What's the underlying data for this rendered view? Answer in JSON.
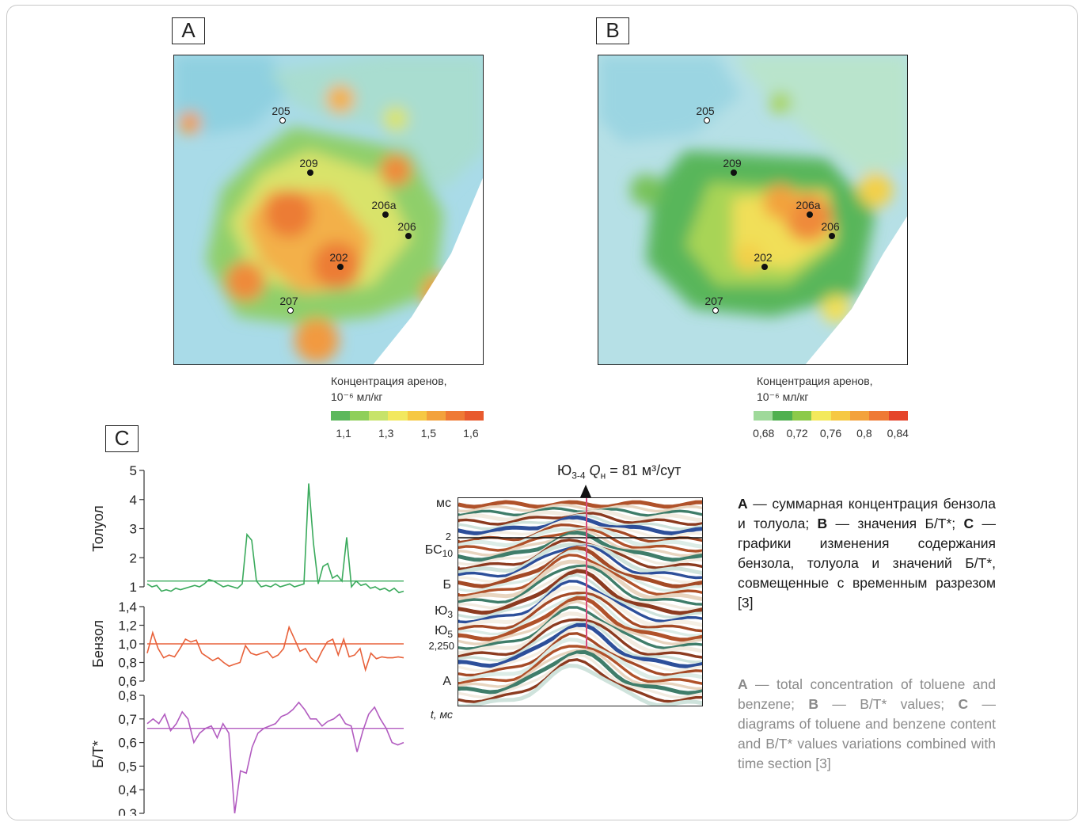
{
  "panels": {
    "a": {
      "tag": "A",
      "wells": [
        {
          "id": "205",
          "filled": false
        },
        {
          "id": "209",
          "filled": true
        },
        {
          "id": "206a",
          "filled": true
        },
        {
          "id": "206",
          "filled": true
        },
        {
          "id": "202",
          "filled": true
        },
        {
          "id": "207",
          "filled": false
        }
      ],
      "legend_title_line1": "Концентрация аренов,",
      "legend_title_line2": "10⁻⁶ мл/кг",
      "legend_ticks": [
        "1,1",
        "1,3",
        "1,5",
        "1,6"
      ],
      "legend_colors": [
        "#5cb85c",
        "#8fcf5a",
        "#c7e36a",
        "#f2e85e",
        "#f6c843",
        "#f3a23c",
        "#ef7a35",
        "#e85a2e"
      ]
    },
    "b": {
      "tag": "B",
      "wells": [
        {
          "id": "205",
          "filled": false
        },
        {
          "id": "209",
          "filled": true
        },
        {
          "id": "206a",
          "filled": true
        },
        {
          "id": "206",
          "filled": true
        },
        {
          "id": "202",
          "filled": true
        },
        {
          "id": "207",
          "filled": false
        }
      ],
      "legend_title_line1": "Концентрация аренов,",
      "legend_title_line2": "10⁻⁶ мл/кг",
      "legend_ticks": [
        "0,68",
        "0,72",
        "0,76",
        "0,8",
        "0,84"
      ],
      "legend_colors": [
        "#9fd99a",
        "#4fb04f",
        "#8cca4a",
        "#f3e95b",
        "#f6c843",
        "#f3a23c",
        "#ef7a35",
        "#e5452b"
      ]
    },
    "c": {
      "tag": "C"
    }
  },
  "chart_data": [
    {
      "type": "line",
      "ylabel": "Толуол",
      "ylim": [
        1,
        5
      ],
      "yticks": [
        "1",
        "2",
        "3",
        "4",
        "5"
      ],
      "color": "#3aaa5c",
      "reference": 1.2,
      "values": [
        1.1,
        1.0,
        1.05,
        0.85,
        0.9,
        0.85,
        0.95,
        0.9,
        0.95,
        1.0,
        1.05,
        1.0,
        1.1,
        1.25,
        1.2,
        1.1,
        1.0,
        1.05,
        1.0,
        0.95,
        1.1,
        2.8,
        2.6,
        1.2,
        1.0,
        1.05,
        1.0,
        1.1,
        1.0,
        1.05,
        1.1,
        1.0,
        1.05,
        1.1,
        4.55,
        2.5,
        1.1,
        1.7,
        1.8,
        1.3,
        1.4,
        1.2,
        2.7,
        1.0,
        1.2,
        1.05,
        1.1,
        0.95,
        1.0,
        0.9,
        0.95,
        0.85,
        0.95,
        0.8,
        0.85
      ]
    },
    {
      "type": "line",
      "ylabel": "Бензол",
      "ylim": [
        0.6,
        1.4
      ],
      "yticks": [
        "0,6",
        "0,8",
        "1,0",
        "1,2",
        "1,4"
      ],
      "color": "#e8613a",
      "reference": 1.0,
      "values": [
        0.9,
        1.12,
        0.95,
        0.85,
        0.88,
        0.86,
        0.95,
        1.05,
        1.02,
        1.04,
        0.9,
        0.86,
        0.82,
        0.85,
        0.8,
        0.76,
        0.78,
        0.8,
        0.98,
        0.9,
        0.88,
        0.9,
        0.92,
        0.85,
        0.88,
        0.95,
        1.18,
        1.05,
        0.92,
        0.95,
        0.85,
        0.8,
        0.92,
        1.02,
        1.05,
        0.88,
        1.05,
        0.86,
        0.88,
        0.95,
        0.72,
        0.9,
        0.84,
        0.86,
        0.85,
        0.85,
        0.86,
        0.85
      ]
    },
    {
      "type": "line",
      "ylabel": "Б/Т*",
      "ylim": [
        0.3,
        0.8
      ],
      "yticks": [
        "0,3",
        "0,4",
        "0,5",
        "0,6",
        "0,7",
        "0,8"
      ],
      "color": "#b25cc0",
      "reference": 0.66,
      "values": [
        0.68,
        0.7,
        0.68,
        0.72,
        0.65,
        0.68,
        0.73,
        0.7,
        0.6,
        0.64,
        0.66,
        0.67,
        0.62,
        0.68,
        0.64,
        0.3,
        0.48,
        0.47,
        0.58,
        0.64,
        0.66,
        0.67,
        0.68,
        0.71,
        0.72,
        0.74,
        0.77,
        0.74,
        0.7,
        0.7,
        0.67,
        0.69,
        0.7,
        0.72,
        0.68,
        0.67,
        0.56,
        0.65,
        0.72,
        0.75,
        0.7,
        0.66,
        0.6,
        0.59,
        0.6
      ]
    }
  ],
  "section": {
    "header": "Ю3-4 Qн = 81 м³/сут",
    "header_prefix": "Ю",
    "header_sub": "3-4",
    "header_q": "Q",
    "header_q_sub": "н",
    "header_rest": " = 81 м³/сут",
    "labels": {
      "ms": "мс",
      "two": "2",
      "bs_main": "БС",
      "bs_sub": "10",
      "b": "Б",
      "yu3_main": "Ю",
      "yu3_sub": "3",
      "yu5_main": "Ю",
      "yu5_sub": "5",
      "t2250": "2,250",
      "a": "А",
      "taxis": "t, мс"
    }
  },
  "caption": {
    "ru_a": "А",
    "ru_a_text": " — суммарная концентрация бензола и толуола; ",
    "ru_b": "B",
    "ru_b_text": " — значения Б/Т*; ",
    "ru_c": "С",
    "ru_c_text": " — графики изменения содержания бензола, толуола и значений Б/Т*, совмещенные с временным разрезом [3]",
    "en_a": "A",
    "en_a_text": " — total concentration of toluene and benzene; ",
    "en_b": "B",
    "en_b_text": " — B/T* values; ",
    "en_c": "C",
    "en_c_text": " — diagrams of toluene and benzene content and B/T* values variations combined with time section [3]"
  }
}
